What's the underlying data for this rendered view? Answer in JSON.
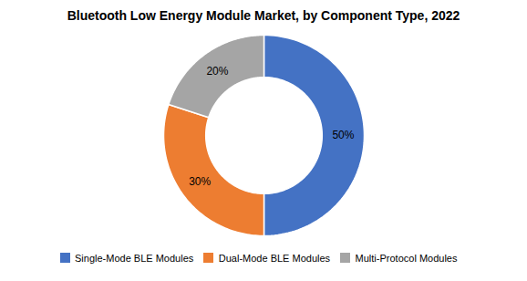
{
  "chart_data": {
    "type": "donut",
    "title": "Bluetooth Low Energy Module Market, by Component Type, 2022",
    "categories": [
      "Single-Mode BLE Modules",
      "Dual-Mode BLE Modules",
      "Multi-Protocol Modules"
    ],
    "values": [
      50,
      30,
      20
    ],
    "value_labels": [
      "50%",
      "30%",
      "20%"
    ],
    "colors": [
      "#4472C4",
      "#ED7D31",
      "#A5A5A5"
    ],
    "data_labels": true,
    "legend": "bottom"
  }
}
